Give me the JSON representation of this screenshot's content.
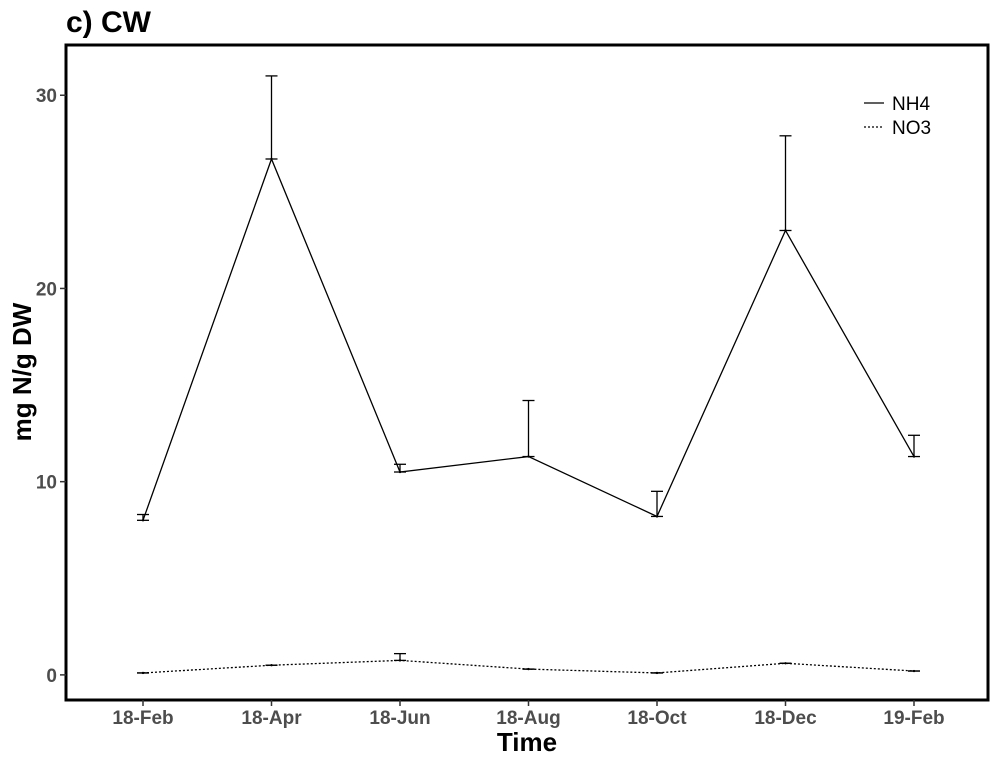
{
  "chart_data": {
    "type": "line",
    "title": "c) CW",
    "xlabel": "Time",
    "ylabel": "mg N/g DW",
    "categories": [
      "18-Feb",
      "18-Apr",
      "18-Jun",
      "18-Aug",
      "18-Oct",
      "18-Dec",
      "19-Feb"
    ],
    "ylim": [
      -1.3,
      32.6
    ],
    "yticks": [
      0,
      10,
      20,
      30
    ],
    "grid": false,
    "legend_position": "top-right",
    "series": [
      {
        "name": "NH4",
        "line_style": "solid",
        "color": "#000000",
        "values": [
          8.0,
          26.7,
          10.5,
          11.3,
          8.2,
          23.0,
          11.3
        ],
        "error": [
          0.3,
          4.3,
          0.4,
          2.9,
          1.3,
          4.9,
          1.1
        ]
      },
      {
        "name": "NO3",
        "line_style": "dotted",
        "color": "#000000",
        "values": [
          0.1,
          0.5,
          0.75,
          0.3,
          0.1,
          0.6,
          0.2
        ],
        "error": [
          0.0,
          0.0,
          0.35,
          0.0,
          0.0,
          0.0,
          0.0
        ]
      }
    ]
  }
}
